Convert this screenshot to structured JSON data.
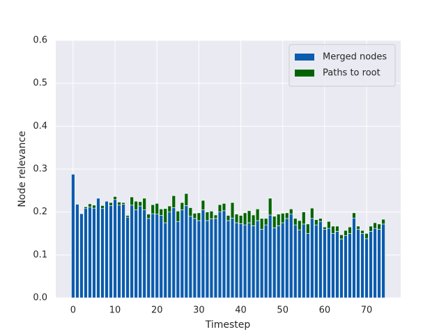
{
  "chart_data": {
    "type": "bar",
    "stacked": true,
    "grid": true,
    "legend": "upper right",
    "xlabel": "Timestep",
    "ylabel": "Node relevance",
    "x": [
      0,
      1,
      2,
      3,
      4,
      5,
      6,
      7,
      8,
      9,
      10,
      11,
      12,
      13,
      14,
      15,
      16,
      17,
      18,
      19,
      20,
      21,
      22,
      23,
      24,
      25,
      26,
      27,
      28,
      29,
      30,
      31,
      32,
      33,
      34,
      35,
      36,
      37,
      38,
      39,
      40,
      41,
      42,
      43,
      44,
      45,
      46,
      47,
      48,
      49,
      50,
      51,
      52,
      53,
      54,
      55,
      56,
      57,
      58,
      59,
      60,
      61,
      62,
      63,
      64,
      65,
      66,
      67,
      68,
      69,
      70,
      71,
      72,
      73,
      74
    ],
    "series": [
      {
        "name": "Merged nodes",
        "color": "#0b5cad",
        "values": [
          0.288,
          0.218,
          0.196,
          0.208,
          0.212,
          0.209,
          0.232,
          0.208,
          0.225,
          0.215,
          0.229,
          0.216,
          0.218,
          0.188,
          0.216,
          0.205,
          0.214,
          0.205,
          0.185,
          0.196,
          0.195,
          0.192,
          0.175,
          0.2,
          0.21,
          0.178,
          0.205,
          0.215,
          0.19,
          0.185,
          0.18,
          0.205,
          0.18,
          0.184,
          0.185,
          0.2,
          0.203,
          0.18,
          0.186,
          0.175,
          0.173,
          0.17,
          0.175,
          0.168,
          0.18,
          0.16,
          0.17,
          0.193,
          0.163,
          0.168,
          0.175,
          0.185,
          0.195,
          0.17,
          0.158,
          0.172,
          0.15,
          0.185,
          0.17,
          0.178,
          0.16,
          0.162,
          0.15,
          0.155,
          0.137,
          0.145,
          0.15,
          0.186,
          0.16,
          0.15,
          0.138,
          0.155,
          0.162,
          0.16,
          0.172
        ]
      },
      {
        "name": "Paths to root",
        "color": "#006400",
        "values": [
          0,
          0,
          0,
          0.004,
          0.007,
          0.007,
          0,
          0.007,
          0,
          0.007,
          0.007,
          0.007,
          0.004,
          0.004,
          0.019,
          0.02,
          0.01,
          0.027,
          0.01,
          0.021,
          0.025,
          0.015,
          0.033,
          0.014,
          0.028,
          0.024,
          0.017,
          0.028,
          0.02,
          0.012,
          0.018,
          0.022,
          0.02,
          0.018,
          0.008,
          0.017,
          0.017,
          0.012,
          0.036,
          0.02,
          0.019,
          0.028,
          0.028,
          0.025,
          0.027,
          0.025,
          0.015,
          0.039,
          0.027,
          0.027,
          0.022,
          0.013,
          0.012,
          0.015,
          0.022,
          0.028,
          0.022,
          0.024,
          0.012,
          0.007,
          0.005,
          0.016,
          0.017,
          0.012,
          0.01,
          0.012,
          0.015,
          0.012,
          0.007,
          0.007,
          0.012,
          0.012,
          0.013,
          0.012,
          0.011
        ]
      }
    ],
    "xlim": [
      -4.14,
      78.14
    ],
    "xticks": [
      0,
      10,
      20,
      30,
      40,
      50,
      60,
      70
    ],
    "ylim": [
      0,
      0.6
    ],
    "yticks": [
      {
        "value": 0,
        "label": "0.0"
      },
      0.1,
      0.2,
      0.3,
      0.4,
      0.5,
      0.6
    ]
  }
}
